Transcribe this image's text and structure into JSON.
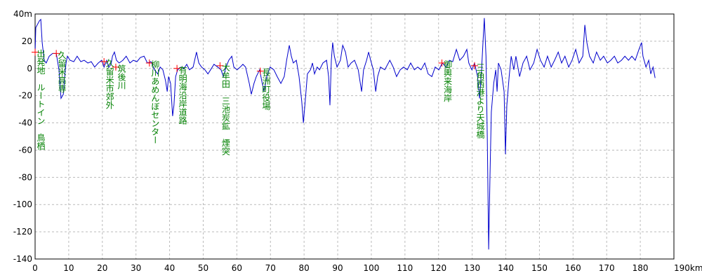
{
  "chart_data": {
    "type": "line",
    "x": [
      0,
      0.2,
      1.3,
      1.7,
      2.1,
      2.7,
      3.3,
      4.2,
      5.2,
      6.3,
      7.1,
      7.7,
      8.4,
      8.8,
      9.2,
      9.6,
      10.4,
      11.5,
      12.5,
      13.6,
      14.6,
      15.7,
      16.7,
      17.7,
      18.8,
      19.8,
      20.5,
      21.3,
      21.9,
      22.6,
      23,
      23.6,
      24.2,
      25,
      26.1,
      27.1,
      28.2,
      29.2,
      30.3,
      31.3,
      32.4,
      33.4,
      34.5,
      35.5,
      36.5,
      37.2,
      38,
      38.8,
      39.3,
      39.7,
      40.3,
      40.9,
      41.3,
      41.8,
      42.4,
      43.4,
      44.3,
      45.1,
      45.9,
      47,
      48,
      48.7,
      49.5,
      50.5,
      51.4,
      52.2,
      53.2,
      54.3,
      55.3,
      56,
      56.8,
      57.6,
      58.5,
      59.1,
      60.1,
      61,
      61.8,
      62.6,
      63.7,
      64.3,
      65.1,
      65.8,
      66.8,
      67.4,
      68.1,
      68.9,
      69.9,
      71,
      72,
      73.1,
      74.1,
      74.8,
      75.6,
      76.2,
      76.8,
      77.7,
      78.5,
      79.3,
      79.8,
      80.4,
      81,
      81.9,
      82.5,
      83.1,
      83.9,
      84.6,
      85.6,
      86.7,
      87.3,
      87.7,
      88.1,
      88.5,
      89,
      89.8,
      90.8,
      91.5,
      92.3,
      93.1,
      94,
      95,
      96.1,
      97.1,
      97.7,
      98.6,
      99.2,
      99.8,
      100.6,
      101.3,
      101.9,
      102.7,
      104,
      105.5,
      106.5,
      107.5,
      108.6,
      109.6,
      110.7,
      111.7,
      112.8,
      113.8,
      114.8,
      115.9,
      116.9,
      118,
      119,
      120.1,
      121.1,
      122.2,
      123.2,
      124.2,
      125.3,
      126.3,
      127.4,
      128.4,
      129,
      129.9,
      130.7,
      131.6,
      132.2,
      132.8,
      133.2,
      133.6,
      134.1,
      134.5,
      134.9,
      135.3,
      135.7,
      136.4,
      137,
      137.4,
      137.8,
      138.6,
      139.5,
      139.9,
      140.3,
      141,
      141.6,
      142.4,
      143,
      144.1,
      145.1,
      146.2,
      147.2,
      148.3,
      149.3,
      150.3,
      151.4,
      152.4,
      153.5,
      154.5,
      155.6,
      156.6,
      157.6,
      158.7,
      159.7,
      160.8,
      161.8,
      162.9,
      163.5,
      164.1,
      164.9,
      166,
      167,
      168.1,
      169.1,
      170.2,
      171.2,
      172.3,
      173.3,
      174.4,
      175.4,
      176.5,
      177.5,
      178.5,
      179.6,
      180.4,
      180.8,
      181.7,
      182.5,
      183.1,
      183.8,
      184.4
    ],
    "series": [
      {
        "color": "#0000cc",
        "values": [
          12,
          30,
          35,
          36,
          19,
          6,
          4,
          9,
          11,
          11,
          -1,
          -22,
          -19,
          -6,
          4,
          9,
          6,
          5,
          9,
          5,
          6,
          4,
          5,
          1,
          4,
          6,
          1,
          6,
          1,
          3,
          9,
          12,
          6,
          4,
          6,
          9,
          4,
          6,
          5,
          8,
          9,
          4,
          5,
          -1,
          -4,
          1,
          -1,
          -9,
          -17,
          -6,
          -11,
          -35,
          -27,
          -6,
          -1,
          1,
          0,
          3,
          -1,
          1,
          12,
          4,
          1,
          -1,
          -4,
          -1,
          3,
          1,
          -1,
          -6,
          1,
          6,
          9,
          1,
          -1,
          1,
          3,
          1,
          -11,
          -19,
          -11,
          -6,
          -1,
          -9,
          -17,
          -6,
          1,
          -1,
          -6,
          -11,
          -6,
          6,
          17,
          9,
          4,
          6,
          -6,
          -24,
          -40,
          -22,
          -4,
          -1,
          4,
          -4,
          1,
          -1,
          4,
          6,
          -6,
          -27,
          6,
          19,
          9,
          1,
          6,
          17,
          12,
          1,
          4,
          6,
          -1,
          -17,
          -1,
          6,
          12,
          6,
          -1,
          -17,
          -6,
          1,
          -1,
          6,
          1,
          -6,
          -1,
          1,
          -1,
          4,
          -1,
          1,
          -1,
          4,
          -4,
          -6,
          1,
          -1,
          4,
          1,
          6,
          5,
          14,
          6,
          9,
          14,
          4,
          -1,
          4,
          -6,
          -22,
          -1,
          19,
          37,
          9,
          -53,
          -133,
          -79,
          -32,
          -11,
          -1,
          -17,
          4,
          -1,
          -17,
          -63,
          -27,
          -6,
          9,
          -1,
          9,
          -6,
          4,
          9,
          -1,
          4,
          14,
          6,
          1,
          9,
          1,
          6,
          12,
          4,
          9,
          1,
          6,
          14,
          4,
          9,
          32,
          19,
          9,
          4,
          12,
          6,
          9,
          4,
          6,
          9,
          4,
          6,
          9,
          6,
          9,
          6,
          14,
          19,
          9,
          1,
          6,
          -4,
          1,
          -7
        ]
      }
    ],
    "annotations": [
      {
        "label": "出発地　ルートイン　鳥栖",
        "x": 0,
        "y": 12
      },
      {
        "label": "久留米高専",
        "x": 6.3,
        "y": 11
      },
      {
        "label": "久留米市郊外",
        "x": 20.5,
        "y": 5
      },
      {
        "label": "筑後川",
        "x": 24,
        "y": 1
      },
      {
        "label": "柳川あめんぼセンター",
        "x": 34,
        "y": 4
      },
      {
        "label": "有明海沿岸道路",
        "x": 42.2,
        "y": 0
      },
      {
        "label": "大牟田　三池炭鉱　煙突",
        "x": 55,
        "y": 2
      },
      {
        "label": "長洲町役場",
        "x": 67,
        "y": -2
      },
      {
        "label": "御輿来海岸",
        "x": 121,
        "y": 4
      },
      {
        "label": "三角西港より天城橋",
        "x": 130.7,
        "y": 2
      }
    ],
    "annotation_color": "#008000",
    "marker_color": "#ff0000",
    "xlim": [
      0,
      190
    ],
    "xticks": [
      0,
      10,
      20,
      30,
      40,
      50,
      60,
      70,
      80,
      90,
      100,
      110,
      120,
      130,
      140,
      150,
      160,
      170,
      180,
      {
        "value": 190,
        "label": "190km"
      }
    ],
    "ylim": [
      -140,
      40
    ],
    "yticks": [
      -140,
      -120,
      -100,
      -80,
      -60,
      -40,
      -20,
      0,
      20,
      {
        "value": 40,
        "label": "40m"
      }
    ],
    "grid": true
  }
}
